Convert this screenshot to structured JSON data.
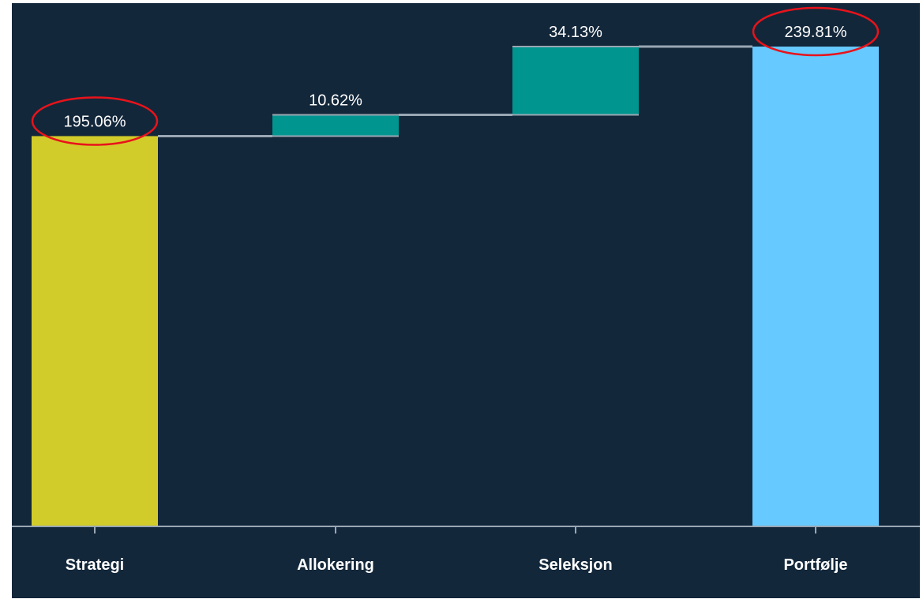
{
  "chart_data": {
    "type": "bar",
    "subtype": "waterfall",
    "categories": [
      "Strategi",
      "Allokering",
      "Seleksjon",
      "Portfølje"
    ],
    "values": [
      195.06,
      10.62,
      34.13,
      239.81
    ],
    "value_labels": [
      "195.06%",
      "10.62%",
      "34.13%",
      "239.81%"
    ],
    "bar_roles": [
      "total",
      "increment",
      "increment",
      "total"
    ],
    "title": "",
    "xlabel": "",
    "ylabel": "",
    "ylim": [
      0,
      256
    ],
    "grid": false,
    "legend": "none",
    "highlighted_labels": [
      "195.06%",
      "239.81%"
    ],
    "colors": {
      "background": "#13273a",
      "strategi": "#d2cc2a",
      "increment": "#00958f",
      "portfolio": "#66c9ff",
      "connector": "#9aa7b3",
      "axis": "#9aa7b3",
      "text": "#ffffff",
      "highlight_ring": "#e8131b"
    }
  }
}
